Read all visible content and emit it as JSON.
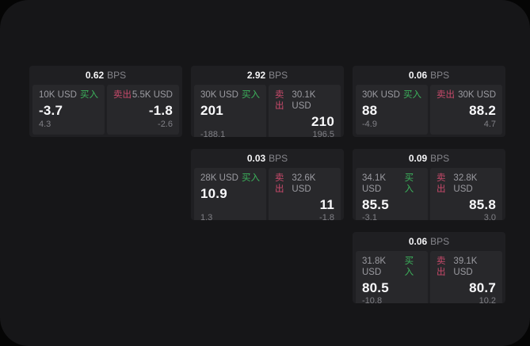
{
  "theme": {
    "window_bg": "#161618",
    "card_bg": "#1f1f22",
    "panel_bg": "#28282b",
    "buy_color": "#3cb35c",
    "sell_color": "#c94a6b",
    "price_color": "#fafafc",
    "muted_color": "#9b9ba1"
  },
  "labels": {
    "bps_unit": "BPS",
    "buy": "买入",
    "sell": "卖出"
  },
  "cards": [
    {
      "col": 1,
      "row": 1,
      "bps": "0.62",
      "buy": {
        "amount": "10K USD",
        "price": "-3.7",
        "delta": "4.3"
      },
      "sell": {
        "amount": "5.5K USD",
        "price": "-1.8",
        "delta": "-2.6"
      }
    },
    {
      "col": 2,
      "row": 1,
      "bps": "2.92",
      "buy": {
        "amount": "30K USD",
        "price": "201",
        "delta": "-188.1"
      },
      "sell": {
        "amount": "30.1K USD",
        "price": "210",
        "delta": "196.5"
      }
    },
    {
      "col": 3,
      "row": 1,
      "bps": "0.06",
      "buy": {
        "amount": "30K USD",
        "price": "88",
        "delta": "-4.9"
      },
      "sell": {
        "amount": "30K USD",
        "price": "88.2",
        "delta": "4.7"
      }
    },
    {
      "col": 2,
      "row": 2,
      "bps": "0.03",
      "buy": {
        "amount": "28K USD",
        "price": "10.9",
        "delta": "1.3"
      },
      "sell": {
        "amount": "32.6K USD",
        "price": "11",
        "delta": "-1.8"
      }
    },
    {
      "col": 3,
      "row": 2,
      "bps": "0.09",
      "buy": {
        "amount": "34.1K USD",
        "price": "85.5",
        "delta": "-3.1"
      },
      "sell": {
        "amount": "32.8K USD",
        "price": "85.8",
        "delta": "3.0"
      }
    },
    {
      "col": 3,
      "row": 3,
      "bps": "0.06",
      "buy": {
        "amount": "31.8K USD",
        "price": "80.5",
        "delta": "-10.8"
      },
      "sell": {
        "amount": "39.1K USD",
        "price": "80.7",
        "delta": "10.2"
      }
    }
  ]
}
